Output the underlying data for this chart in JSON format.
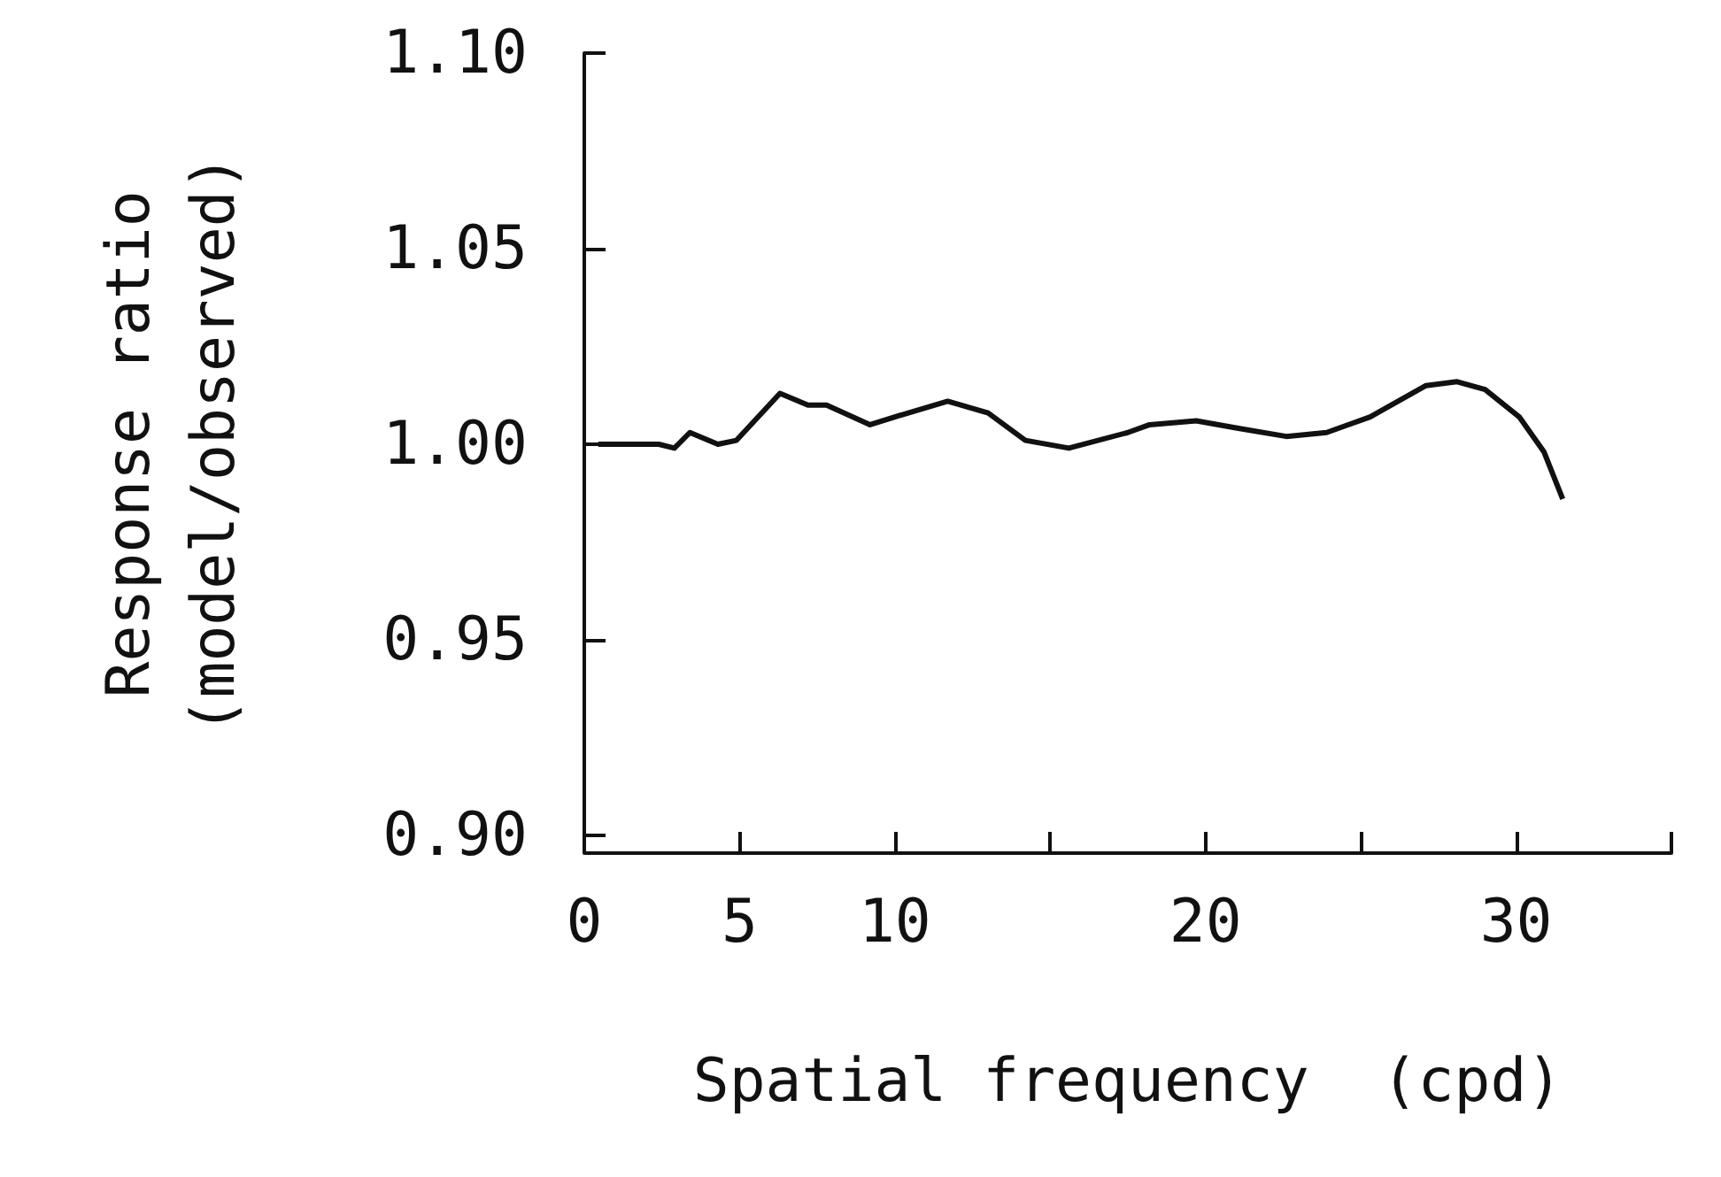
{
  "chart_data": {
    "type": "line",
    "xlabel": "Spatial frequency  (cpd)",
    "ylabel": "Response ratio\n(model/observed)",
    "xlim": [
      0,
      35
    ],
    "ylim": [
      0.9,
      1.1
    ],
    "xticks": [
      0,
      5,
      10,
      {
        "value": 15,
        "label": null
      },
      20,
      {
        "value": 25,
        "label": null
      },
      30,
      {
        "value": 35,
        "label": null
      }
    ],
    "yticks": [
      {
        "value": 0.9,
        "label": "0.90"
      },
      {
        "value": 0.95,
        "label": "0.95"
      },
      {
        "value": 1.0,
        "label": "1.00"
      },
      {
        "value": 1.05,
        "label": "1.05"
      },
      {
        "value": 1.1,
        "label": "1.10"
      }
    ],
    "grid": false,
    "marker": "none",
    "line_style": "solid",
    "series": [
      {
        "color": "#111111",
        "x": [
          0.45,
          2.4,
          2.9,
          3.4,
          4.3,
          4.9,
          6.3,
          7.2,
          7.8,
          9.2,
          10.0,
          11.7,
          13.0,
          14.2,
          15.6,
          17.5,
          18.2,
          19.7,
          21.1,
          22.6,
          23.9,
          25.3,
          27.1,
          28.1,
          29.0,
          30.1,
          30.9,
          31.5
        ],
        "values": [
          1.0,
          1.0,
          0.999,
          1.003,
          1.0,
          1.001,
          1.013,
          1.01,
          1.01,
          1.005,
          1.007,
          1.011,
          1.008,
          1.001,
          0.999,
          1.003,
          1.005,
          1.006,
          1.004,
          1.002,
          1.003,
          1.007,
          1.015,
          1.016,
          1.014,
          1.007,
          0.998,
          0.986
        ]
      }
    ]
  }
}
